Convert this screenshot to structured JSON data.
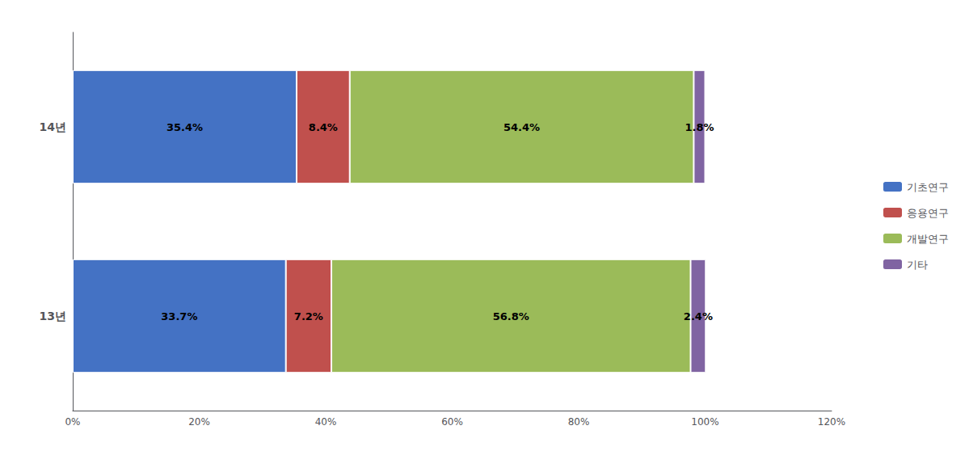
{
  "chart_data": {
    "type": "bar",
    "orientation": "horizontal",
    "stacked": true,
    "data_labels": true,
    "grid": false,
    "legend": "right",
    "categories": [
      "14년",
      "13년"
    ],
    "series": [
      {
        "name": "기초연구",
        "color": "#4472C4",
        "values": [
          35.4,
          33.7
        ],
        "value_labels": [
          "35.4%",
          "33.7%"
        ]
      },
      {
        "name": "응용연구",
        "color": "#C0504D",
        "values": [
          8.4,
          7.2
        ],
        "value_labels": [
          "8.4%",
          "7.2%"
        ]
      },
      {
        "name": "개발연구",
        "color": "#9BBB59",
        "values": [
          54.4,
          56.8
        ],
        "value_labels": [
          "54.4%",
          "56.8%"
        ]
      },
      {
        "name": "기타",
        "color": "#8064A2",
        "values": [
          1.8,
          2.4
        ],
        "value_labels": [
          "1.8%",
          "2.4%"
        ]
      }
    ],
    "xlim": [
      0,
      120
    ],
    "xticks": [
      {
        "value": 0,
        "label": "0%"
      },
      {
        "value": 20,
        "label": "20%"
      },
      {
        "value": 40,
        "label": "40%"
      },
      {
        "value": 60,
        "label": "60%"
      },
      {
        "value": 80,
        "label": "80%"
      },
      {
        "value": 100,
        "label": "100%"
      },
      {
        "value": 120,
        "label": "120%"
      }
    ]
  }
}
